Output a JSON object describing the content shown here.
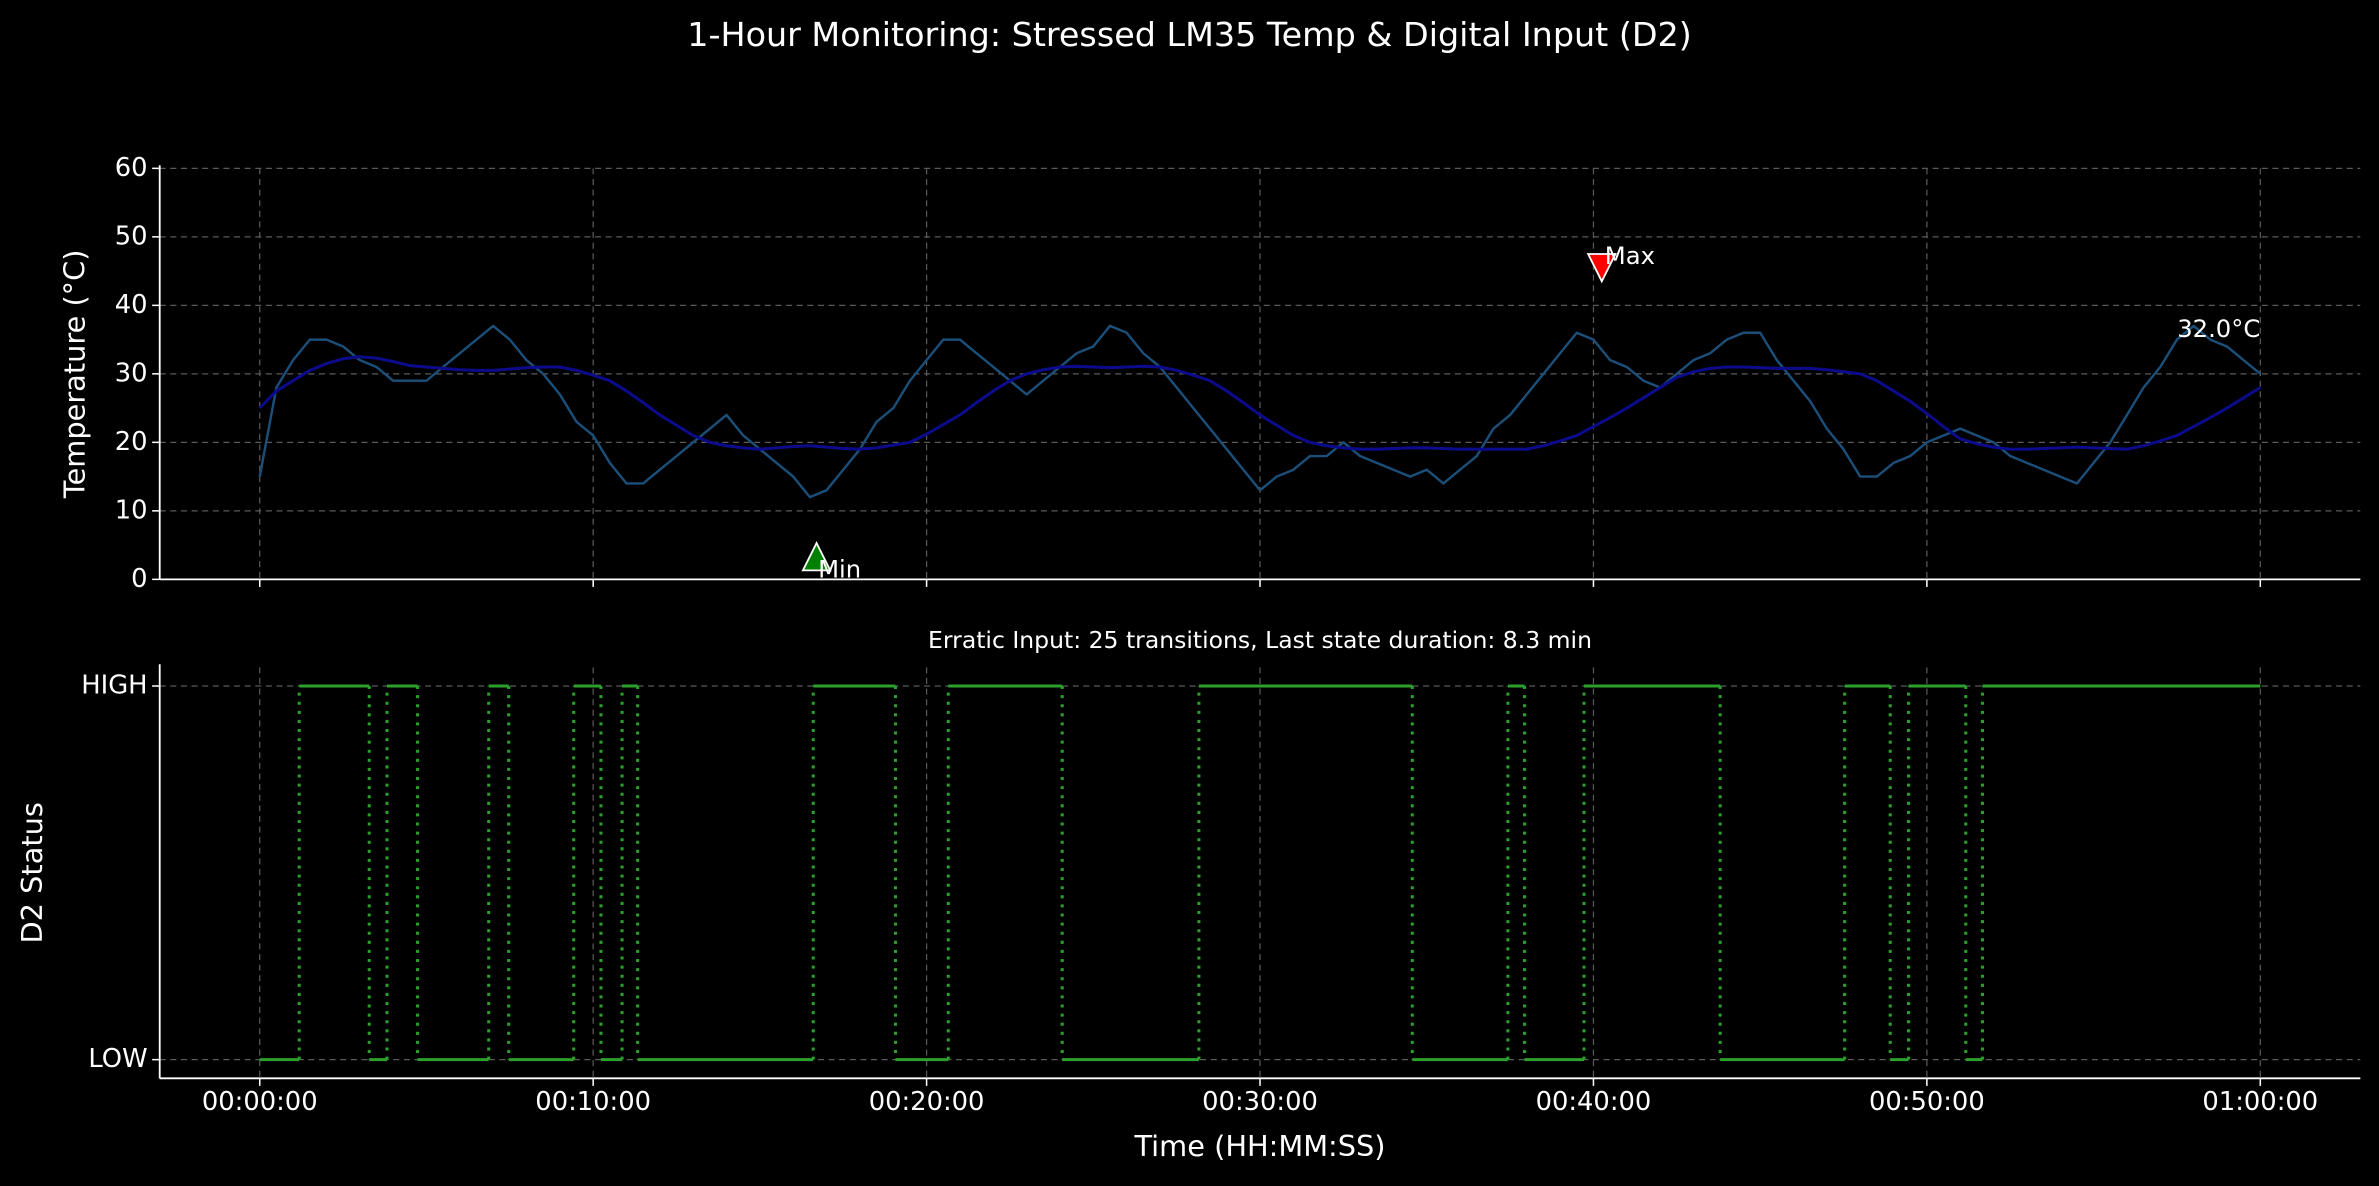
{
  "title": "1-Hour Monitoring: Stressed LM35 Temp & Digital Input (D2)",
  "chart_data": [
    {
      "type": "line",
      "ylabel": "Temperature (°C)",
      "x": [
        0,
        30,
        60,
        90,
        120,
        150,
        180,
        210,
        240,
        270,
        300,
        330,
        360,
        390,
        420,
        450,
        480,
        510,
        540,
        570,
        600,
        630,
        660,
        690,
        720,
        750,
        780,
        810,
        840,
        870,
        900,
        930,
        960,
        990,
        1020,
        1050,
        1080,
        1110,
        1140,
        1170,
        1200,
        1230,
        1260,
        1290,
        1320,
        1350,
        1380,
        1410,
        1440,
        1470,
        1500,
        1530,
        1560,
        1590,
        1620,
        1650,
        1680,
        1710,
        1740,
        1770,
        1800,
        1830,
        1860,
        1890,
        1920,
        1950,
        1980,
        2010,
        2040,
        2070,
        2100,
        2130,
        2160,
        2190,
        2220,
        2250,
        2280,
        2310,
        2340,
        2370,
        2400,
        2430,
        2460,
        2490,
        2520,
        2550,
        2580,
        2610,
        2640,
        2670,
        2700,
        2730,
        2760,
        2790,
        2820,
        2850,
        2880,
        2910,
        2940,
        2970,
        3000,
        3030,
        3060,
        3090,
        3120,
        3150,
        3180,
        3210,
        3240,
        3270,
        3300,
        3330,
        3360,
        3390,
        3420,
        3450,
        3480,
        3510,
        3540,
        3570,
        3600
      ],
      "xlim": [
        -180,
        3780
      ],
      "ylim": [
        0,
        60
      ],
      "yticks": [
        0,
        10,
        20,
        30,
        40,
        50,
        60
      ],
      "grid": true,
      "series": [
        {
          "color": "#1b4f7a",
          "values": [
            15,
            28,
            32,
            35,
            35,
            34,
            32,
            31,
            29,
            29,
            29,
            31,
            33,
            35,
            37,
            35,
            32,
            30,
            27,
            23,
            21,
            17,
            14,
            14,
            16,
            18,
            20,
            22,
            24,
            21,
            19,
            17,
            15,
            12,
            13,
            16,
            19,
            23,
            25,
            29,
            32,
            35,
            35,
            33,
            31,
            29,
            27,
            29,
            31,
            33,
            34,
            37,
            36,
            33,
            31,
            28,
            25,
            22,
            19,
            16,
            13,
            15,
            16,
            18,
            18,
            20,
            18,
            17,
            16,
            15,
            16,
            14,
            16,
            18,
            22,
            24,
            27,
            30,
            33,
            36,
            35,
            32,
            31,
            29,
            28,
            30,
            32,
            33,
            35,
            36,
            36,
            32,
            29,
            26,
            22,
            19,
            15,
            15,
            17,
            18,
            20,
            21,
            22,
            21,
            20,
            18,
            17,
            16,
            15,
            14,
            17,
            20,
            24,
            28,
            31,
            35,
            37,
            35,
            34,
            32,
            30
          ]
        },
        {
          "color": "#0b0b8c",
          "values": [
            25,
            27.5,
            29,
            30.5,
            31.5,
            32.2,
            32.5,
            32.3,
            31.8,
            31.2,
            31,
            30.8,
            30.6,
            30.5,
            30.5,
            30.7,
            30.9,
            31,
            31,
            30.5,
            29.8,
            29,
            27.5,
            25.8,
            24,
            22.5,
            21,
            20,
            19.5,
            19.2,
            19,
            19.2,
            19.4,
            19.5,
            19.3,
            19.1,
            19,
            19.2,
            19.6,
            20,
            21.2,
            22.6,
            24,
            25.8,
            27.5,
            29,
            30,
            30.6,
            31,
            31.1,
            31,
            30.9,
            31,
            31.1,
            31,
            30.5,
            29.8,
            29,
            27.5,
            25.8,
            24,
            22.5,
            21,
            20,
            19.5,
            19.2,
            19,
            19,
            19.1,
            19.2,
            19.2,
            19.1,
            19,
            19,
            19,
            19,
            19,
            19.5,
            20.2,
            21,
            22.3,
            23.6,
            25,
            26.5,
            28,
            29.5,
            30.3,
            30.8,
            31,
            31,
            30.9,
            30.8,
            30.8,
            30.8,
            30.6,
            30.3,
            30,
            29,
            27.5,
            26,
            24.2,
            22.3,
            20.5,
            19.8,
            19.3,
            19,
            19,
            19.1,
            19.2,
            19.3,
            19.2,
            19.1,
            19,
            19.5,
            20.2,
            21,
            22.3,
            23.6,
            25,
            26.5,
            28
          ]
        }
      ],
      "annotations": [
        {
          "text": "Max",
          "x": 2415,
          "y": 45.5,
          "color": "#ff0000",
          "marker": "down"
        },
        {
          "text": "Min",
          "x": 1002,
          "y": 3.3,
          "color": "#008000",
          "marker": "up"
        },
        {
          "text": "32.0°C",
          "x": 3600,
          "y": 32,
          "color": "#ffffff"
        }
      ]
    },
    {
      "type": "step",
      "title": "Erratic Input: 25 transitions, Last state duration: 8.3 min",
      "xlabel": "Time (HH:MM:SS)",
      "ylabel": "D2 Status",
      "x": [
        0,
        71,
        197,
        229,
        284,
        412,
        448,
        565,
        614,
        652,
        680,
        996,
        1144,
        1239,
        1444,
        1690,
        2074,
        2246,
        2276,
        2383,
        2628,
        2852,
        2934,
        2967,
        3070,
        3100,
        3600
      ],
      "values": [
        0,
        1,
        0,
        1,
        0,
        1,
        0,
        1,
        0,
        1,
        0,
        1,
        0,
        1,
        0,
        1,
        0,
        1,
        0,
        1,
        0,
        1,
        0,
        1,
        0,
        1,
        1
      ],
      "color": "#2ca02c",
      "xlim": [
        -180,
        3780
      ],
      "xticks": [
        {
          "value": 0,
          "label": "00:00:00"
        },
        {
          "value": 600,
          "label": "00:10:00"
        },
        {
          "value": 1200,
          "label": "00:20:00"
        },
        {
          "value": 1800,
          "label": "00:30:00"
        },
        {
          "value": 2400,
          "label": "00:40:00"
        },
        {
          "value": 3000,
          "label": "00:50:00"
        },
        {
          "value": 3600,
          "label": "01:00:00"
        }
      ],
      "ylim": [
        -0.05,
        1.05
      ],
      "yticks": [
        {
          "value": 0,
          "label": "LOW"
        },
        {
          "value": 1,
          "label": "HIGH"
        }
      ],
      "grid": true
    }
  ]
}
